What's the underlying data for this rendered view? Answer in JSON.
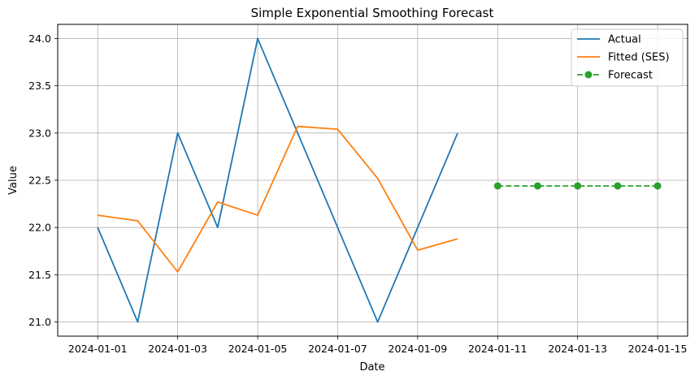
{
  "chart_data": {
    "type": "line",
    "title": "Simple Exponential Smoothing Forecast",
    "xlabel": "Date",
    "ylabel": "Value",
    "x_tick_labels": [
      "2024-01-01",
      "2024-01-03",
      "2024-01-05",
      "2024-01-07",
      "2024-01-09",
      "2024-01-11",
      "2024-01-13",
      "2024-01-15"
    ],
    "y_tick_labels": [
      "21.0",
      "21.5",
      "22.0",
      "22.5",
      "23.0",
      "23.5",
      "24.0"
    ],
    "xlim": [
      "2023-12-31T00:00",
      "2024-01-15T18:00"
    ],
    "ylim": [
      20.85,
      24.15
    ],
    "grid": true,
    "legend_position": "top-right",
    "series": [
      {
        "name": "Actual",
        "color": "#1f77b4",
        "style": "solid",
        "marker": "none",
        "x": [
          "2024-01-01",
          "2024-01-02",
          "2024-01-03",
          "2024-01-04",
          "2024-01-05",
          "2024-01-06",
          "2024-01-07",
          "2024-01-08",
          "2024-01-09",
          "2024-01-10"
        ],
        "y": [
          22.0,
          21.0,
          23.0,
          22.0,
          24.0,
          23.0,
          22.0,
          21.0,
          22.0,
          23.0
        ]
      },
      {
        "name": "Fitted (SES)",
        "color": "#ff7f0e",
        "style": "solid",
        "marker": "none",
        "x": [
          "2024-01-01",
          "2024-01-02",
          "2024-01-03",
          "2024-01-04",
          "2024-01-05",
          "2024-01-06",
          "2024-01-07",
          "2024-01-08",
          "2024-01-09",
          "2024-01-10"
        ],
        "y": [
          22.13,
          22.07,
          21.53,
          22.27,
          22.13,
          23.07,
          23.04,
          22.52,
          21.76,
          21.88
        ]
      },
      {
        "name": "Forecast",
        "color": "#2ca02c",
        "style": "dashed",
        "marker": "circle",
        "x": [
          "2024-01-11",
          "2024-01-12",
          "2024-01-13",
          "2024-01-14",
          "2024-01-15"
        ],
        "y": [
          22.44,
          22.44,
          22.44,
          22.44,
          22.44
        ]
      }
    ]
  }
}
